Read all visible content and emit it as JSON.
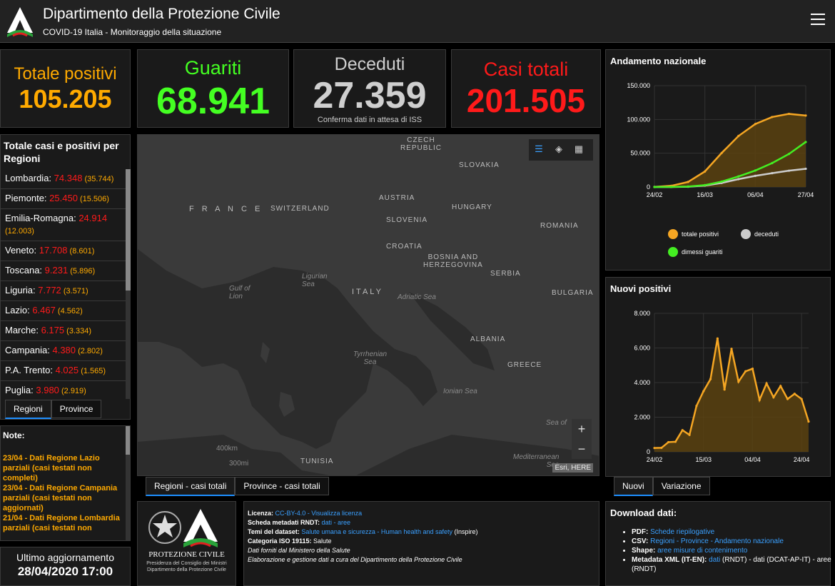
{
  "header": {
    "title": "Dipartimento della Protezione Civile",
    "subtitle": "COVID-19 Italia - Monitoraggio della situazione"
  },
  "kpi": {
    "positives": {
      "label": "Totale positivi",
      "value": "105.205"
    },
    "recovered": {
      "label": "Guariti",
      "value": "68.941"
    },
    "deaths": {
      "label": "Deceduti",
      "value": "27.359",
      "note": "Conferma dati in attesa di ISS"
    },
    "total": {
      "label": "Casi totali",
      "value": "201.505"
    }
  },
  "regions": {
    "title": "Totale casi e positivi per Regioni",
    "items": [
      {
        "name": "Lombardia: ",
        "total": "74.348",
        "positive": " (35.744)"
      },
      {
        "name": "Piemonte: ",
        "total": "25.450",
        "positive": " (15.506)"
      },
      {
        "name": "Emilia-Romagna: ",
        "total": "24.914",
        "positive": " (12.003)"
      },
      {
        "name": "Veneto: ",
        "total": "17.708",
        "positive": " (8.601)"
      },
      {
        "name": "Toscana: ",
        "total": "9.231",
        "positive": " (5.896)"
      },
      {
        "name": "Liguria: ",
        "total": "7.772",
        "positive": " (3.571)"
      },
      {
        "name": "Lazio: ",
        "total": "6.467",
        "positive": " (4.562)"
      },
      {
        "name": "Marche: ",
        "total": "6.175",
        "positive": " (3.334)"
      },
      {
        "name": "Campania: ",
        "total": "4.380",
        "positive": " (2.802)"
      },
      {
        "name": "P.A. Trento: ",
        "total": "4.025",
        "positive": " (1.565)"
      },
      {
        "name": "Puglia: ",
        "total": "3.980",
        "positive": " (2.919)"
      }
    ],
    "tabs": [
      "Regioni",
      "Province"
    ]
  },
  "notes": {
    "title": "Note:",
    "text": "23/04 - Dati Regione Lazio parziali (casi testati non completi)\n23/04 - Dati Regione Campania parziali (casi testati non aggiornati)\n21/04 - Dati Regione Lombardia parziali (casi testati non"
  },
  "update": {
    "label": "Ultimo aggiornamento",
    "value": "28/04/2020 17:00"
  },
  "map": {
    "labels": {
      "france": "F R A N C E",
      "switzerland": "SWITZERLAND",
      "austria": "AUSTRIA",
      "czech": "CZECH\nREPUBLIC",
      "slovakia": "SLOVAKIA",
      "hungary": "HUNGARY",
      "romania": "ROMANIA",
      "slovenia": "SLOVENIA",
      "croatia": "CROATIA",
      "bosnia": "BOSNIA AND\nHERZEGOVINA",
      "serbia": "SERBIA",
      "bulgaria": "BULGARIA",
      "italy": "ITALY",
      "albania": "ALBANIA",
      "greece": "GREECE",
      "tunisia": "TUNISIA",
      "gulf_of_lion": "Gulf of\nLion",
      "ligurian": "Ligurian\nSea",
      "adriatic": "Adriatic Sea",
      "tyrrhenian": "Tyrrhenian\nSea",
      "ionian": "Ionian Sea",
      "sea_of": "Sea of",
      "mediterranean": "Mediterranean\nSea"
    },
    "scale_km": "400km",
    "scale_mi": "300mi",
    "attribution": "Esri, HERE",
    "zoom_in": "+",
    "zoom_out": "−",
    "tabs": [
      "Regioni - casi totali",
      "Province - casi totali"
    ]
  },
  "chart_data": [
    {
      "type": "line",
      "title": "Andamento nazionale",
      "x": [
        "24/02",
        "02/03",
        "09/03",
        "16/03",
        "23/03",
        "30/03",
        "06/04",
        "13/04",
        "20/04",
        "27/04"
      ],
      "xticks": [
        "24/02",
        "16/03",
        "06/04",
        "27/04"
      ],
      "yticks": [
        "0",
        "50.000",
        "100.000",
        "150.000"
      ],
      "ylim": [
        0,
        150000
      ],
      "series": [
        {
          "name": "totale positivi",
          "color": "#f5a623",
          "values": [
            200,
            1800,
            7500,
            23000,
            50400,
            75500,
            93200,
            103600,
            108200,
            105800
          ]
        },
        {
          "name": "deceduti",
          "color": "#cccccc",
          "values": [
            7,
            52,
            460,
            2160,
            6080,
            11590,
            16520,
            20470,
            24110,
            26980
          ]
        },
        {
          "name": "dimessi guariti",
          "color": "#44ee22",
          "values": [
            1,
            150,
            720,
            2750,
            8000,
            15700,
            24400,
            35400,
            48900,
            66600
          ]
        }
      ],
      "legend_order": [
        0,
        1,
        2
      ],
      "grid": true
    },
    {
      "type": "line",
      "title": "Nuovi positivi",
      "x": [
        "24/02",
        "27/02",
        "01/03",
        "04/03",
        "07/03",
        "10/03",
        "13/03",
        "15/03",
        "18/03",
        "21/03",
        "24/03",
        "27/03",
        "30/03",
        "02/04",
        "04/04",
        "07/04",
        "10/04",
        "13/04",
        "16/04",
        "19/04",
        "22/04",
        "24/04",
        "27/04"
      ],
      "xticks": [
        "24/02",
        "15/03",
        "04/04",
        "24/04"
      ],
      "yticks": [
        "0",
        "2.000",
        "4.000",
        "6.000",
        "8.000"
      ],
      "ylim": [
        0,
        8000
      ],
      "series": [
        {
          "name": "Nuovi",
          "color": "#f5a623",
          "values": [
            220,
            230,
            560,
            580,
            1250,
            980,
            2650,
            3500,
            4200,
            6550,
            3600,
            5950,
            4050,
            4650,
            4800,
            3000,
            3950,
            3150,
            3800,
            3050,
            3350,
            3050,
            1750
          ]
        }
      ],
      "grid": true
    }
  ],
  "chart_tabs": [
    "Nuovi",
    "Variazione"
  ],
  "protezione": {
    "label": "PROTEZIONE CIVILE",
    "sub": "Presidenza del Consiglio dei Ministri\nDipartimento della Protezione Civile"
  },
  "info": {
    "licenza_label": "Licenza: ",
    "licenza_link": "CC-BY-4.0 - Visualizza licenza",
    "scheda_label": "Scheda metadati RNDT: ",
    "scheda_links": "dati - aree",
    "temi_label": "Temi del dataset: ",
    "temi_link": "Salute umana e sicurezza - Human health and safety",
    "temi_tail": " (Inspire)",
    "categoria": "Categoria ISO 19115: ",
    "categoria_val": "Salute",
    "fonte": "Dati forniti dal Ministero della Salute",
    "elaborazione": "Elaborazione e gestione dati a cura del Dipartimento della Protezione Civile"
  },
  "download": {
    "title": "Download dati:",
    "items": [
      {
        "label": "PDF: ",
        "links": "Schede riepilogative",
        "tail": ""
      },
      {
        "label": "CSV: ",
        "links": "Regioni - Province - Andamento nazionale",
        "tail": ""
      },
      {
        "label": "Shape: ",
        "links": "aree misure di contenimento",
        "tail": ""
      },
      {
        "label": "Metadata XML (IT-EN): ",
        "links": "dati",
        "tail": " (RNDT) - dati (DCAT-AP-IT) - aree (RNDT)"
      }
    ]
  },
  "colors": {
    "orange": "#ffaa00",
    "green": "#44ff22",
    "red": "#ff1a1a",
    "grey": "#cfcfcf",
    "link": "#3aa0ff"
  }
}
